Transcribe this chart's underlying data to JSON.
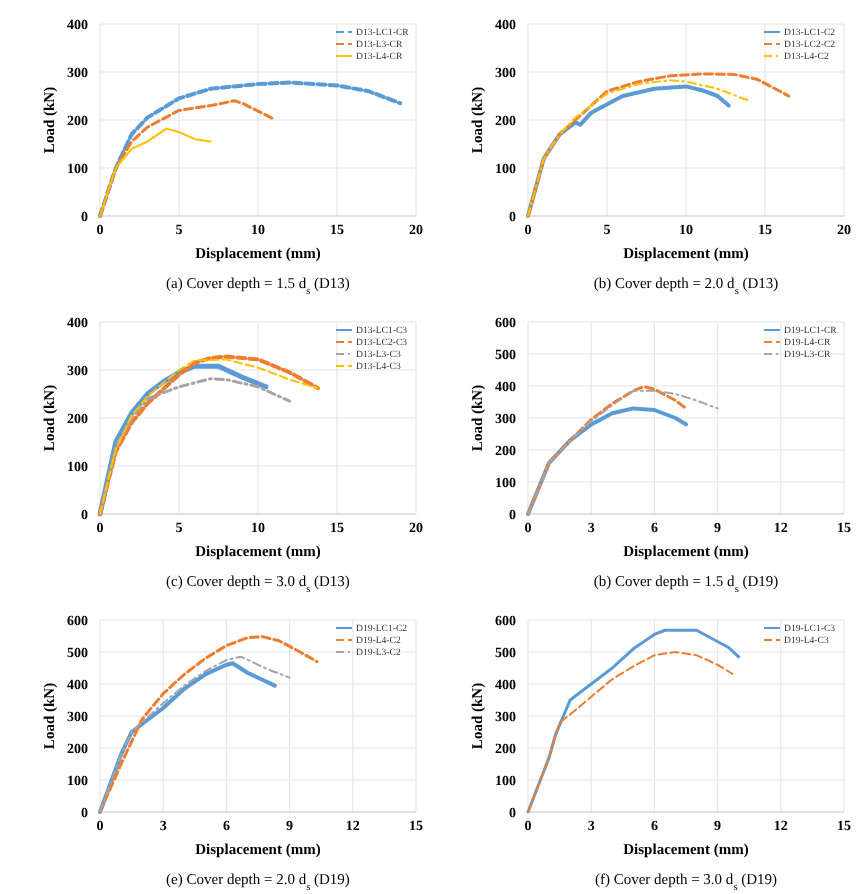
{
  "chart_data": [
    {
      "type": "line",
      "title": "(a) Cover depth = 1.5 d$_{s}$ (D13)",
      "xlabel": "Displacement (mm)",
      "ylabel": "Load (kN)",
      "xlim": [
        0,
        20
      ],
      "xticks": [
        0,
        5,
        10,
        15,
        20
      ],
      "ylim": [
        0,
        400
      ],
      "yticks": [
        0,
        100,
        200,
        300,
        400
      ],
      "grid": true,
      "legend": "top right",
      "marker": "none",
      "series": [
        {
          "name": "D13-LC1-CR",
          "color": "#5b9bd5",
          "line_style": "dashed",
          "x": [
            0,
            1,
            2,
            3,
            5,
            7,
            10,
            12,
            15,
            17,
            19
          ],
          "values": [
            0,
            100,
            170,
            205,
            245,
            265,
            275,
            278,
            272,
            260,
            235
          ]
        },
        {
          "name": "D13-L3-CR",
          "color": "#ed7d31",
          "line_style": "dashed",
          "x": [
            0,
            1,
            2,
            3,
            5,
            7,
            8.5,
            9,
            11
          ],
          "values": [
            0,
            100,
            155,
            185,
            220,
            230,
            240,
            235,
            202
          ]
        },
        {
          "name": "D13-L4-CR",
          "color": "#ffc000",
          "line_style": "solid",
          "x": [
            0,
            1,
            2,
            3,
            4.2,
            5,
            6,
            7
          ],
          "values": [
            0,
            100,
            140,
            155,
            182,
            175,
            160,
            155
          ]
        }
      ]
    },
    {
      "type": "line",
      "title": "(b) Cover depth = 2.0 d$_{s}$ (D13)",
      "xlabel": "Displacement (mm)",
      "ylabel": "Load (kN)",
      "xlim": [
        0,
        20
      ],
      "xticks": [
        0,
        5,
        10,
        15,
        20
      ],
      "ylim": [
        0,
        400
      ],
      "yticks": [
        0,
        100,
        200,
        300,
        400
      ],
      "grid": true,
      "legend": "top right",
      "marker": "none",
      "series": [
        {
          "name": "D13-LC1-C2",
          "color": "#5b9bd5",
          "line_style": "solid",
          "x": [
            0,
            1,
            2,
            3,
            3.3,
            4,
            6,
            8,
            10,
            11,
            12,
            12.7
          ],
          "values": [
            0,
            120,
            170,
            195,
            190,
            215,
            250,
            265,
            270,
            262,
            250,
            230
          ]
        },
        {
          "name": "D13-LC2-C2",
          "color": "#ed7d31",
          "line_style": "dashed",
          "x": [
            0,
            1,
            2,
            3,
            5,
            7,
            9,
            11,
            13,
            14.5,
            16.5
          ],
          "values": [
            0,
            120,
            170,
            200,
            260,
            280,
            292,
            296,
            295,
            285,
            250
          ]
        },
        {
          "name": "D13-L4-C2",
          "color": "#ffc000",
          "line_style": "dashdot",
          "x": [
            0,
            1,
            2,
            3,
            5,
            7,
            9,
            10,
            12,
            14
          ],
          "values": [
            0,
            120,
            170,
            205,
            255,
            275,
            283,
            280,
            265,
            240
          ]
        }
      ]
    },
    {
      "type": "line",
      "title": "(c) Cover depth = 3.0 d$_{s}$ (D13)",
      "xlabel": "Displacement (mm)",
      "ylabel": "Load (kN)",
      "xlim": [
        0,
        20
      ],
      "xticks": [
        0,
        5,
        10,
        15,
        20
      ],
      "ylim": [
        0,
        400
      ],
      "yticks": [
        0,
        100,
        200,
        300,
        400
      ],
      "grid": true,
      "legend": "top right",
      "marker": "none",
      "series": [
        {
          "name": "D13-LC1-C3",
          "color": "#5b9bd5",
          "line_style": "solid",
          "x": [
            0,
            1,
            2,
            3,
            4,
            5,
            6,
            7.5,
            9,
            10.5
          ],
          "values": [
            0,
            150,
            210,
            250,
            275,
            295,
            308,
            308,
            285,
            265
          ]
        },
        {
          "name": "D13-LC2-C3",
          "color": "#ed7d31",
          "line_style": "dashed",
          "x": [
            0,
            1,
            2,
            3,
            5,
            6,
            7,
            8,
            10,
            12,
            13.8
          ],
          "values": [
            0,
            130,
            190,
            230,
            290,
            315,
            325,
            328,
            322,
            295,
            262
          ]
        },
        {
          "name": "D13-L3-C3",
          "color": "#a5a5a5",
          "line_style": "dashdot",
          "x": [
            0,
            1,
            2,
            3,
            5,
            7,
            8,
            10,
            12
          ],
          "values": [
            0,
            140,
            200,
            240,
            265,
            282,
            280,
            265,
            235
          ]
        },
        {
          "name": "D13-L4-C3",
          "color": "#ffc000",
          "line_style": "dashed",
          "x": [
            0,
            1,
            2,
            3,
            5,
            6,
            8,
            10,
            12,
            13.8
          ],
          "values": [
            0,
            135,
            205,
            245,
            300,
            320,
            322,
            305,
            280,
            262
          ]
        }
      ]
    },
    {
      "type": "line",
      "title": "(b) Cover depth = 1.5 d$_{s}$ (D19)",
      "xlabel": "Displacement (mm)",
      "ylabel": "Load (kN)",
      "xlim": [
        0,
        15
      ],
      "xticks": [
        0,
        3,
        6,
        9,
        12,
        15
      ],
      "ylim": [
        0,
        600
      ],
      "yticks": [
        0,
        100,
        200,
        300,
        400,
        500,
        600
      ],
      "grid": true,
      "legend": "top right",
      "marker": "none",
      "series": [
        {
          "name": "D19-LC1-CR",
          "color": "#5b9bd5",
          "line_style": "solid",
          "x": [
            0,
            1,
            2,
            3,
            4,
            5,
            6,
            7,
            7.5
          ],
          "values": [
            0,
            160,
            230,
            280,
            315,
            330,
            325,
            300,
            280
          ]
        },
        {
          "name": "D19-L4-CR",
          "color": "#ed7d31",
          "line_style": "dashed",
          "x": [
            0,
            1,
            2,
            3,
            4,
            5,
            5.5,
            6,
            7,
            7.5
          ],
          "values": [
            0,
            160,
            230,
            295,
            345,
            385,
            398,
            390,
            355,
            330
          ]
        },
        {
          "name": "D19-L3-CR",
          "color": "#a5a5a5",
          "line_style": "dashdot",
          "x": [
            0,
            1,
            2,
            3,
            4,
            5,
            6,
            7,
            8,
            9
          ],
          "values": [
            0,
            160,
            230,
            290,
            340,
            385,
            385,
            375,
            355,
            330
          ]
        }
      ]
    },
    {
      "type": "line",
      "title": "(e) Cover depth = 2.0 d$_{s}$ (D19)",
      "xlabel": "Displacement (mm)",
      "ylabel": "Load (kN)",
      "xlim": [
        0,
        15
      ],
      "xticks": [
        0,
        3,
        6,
        9,
        12,
        15
      ],
      "ylim": [
        0,
        600
      ],
      "yticks": [
        0,
        100,
        200,
        300,
        400,
        500,
        600
      ],
      "grid": true,
      "legend": "top right",
      "marker": "none",
      "series": [
        {
          "name": "D19-LC1-C2",
          "color": "#5b9bd5",
          "line_style": "solid",
          "x": [
            0,
            1,
            1.5,
            2,
            3,
            4,
            5,
            6,
            6.3,
            7,
            8.3
          ],
          "values": [
            0,
            180,
            250,
            275,
            325,
            385,
            430,
            460,
            465,
            435,
            395
          ]
        },
        {
          "name": "D19-L4-C2",
          "color": "#ed7d31",
          "line_style": "dashed",
          "x": [
            0,
            1,
            2,
            3,
            4,
            5,
            6,
            7,
            7.7,
            8.5,
            9.5,
            10.3
          ],
          "values": [
            0,
            150,
            290,
            370,
            430,
            480,
            520,
            545,
            548,
            535,
            500,
            470
          ]
        },
        {
          "name": "D19-L3-C2",
          "color": "#a5a5a5",
          "line_style": "dashdot",
          "x": [
            0,
            1,
            1.5,
            2,
            3,
            4,
            5,
            6,
            6.7,
            8,
            9
          ],
          "values": [
            0,
            180,
            250,
            280,
            340,
            395,
            440,
            475,
            485,
            445,
            420
          ]
        }
      ]
    },
    {
      "type": "line",
      "title": "(f) Cover depth = 3.0 d$_{s}$ (D19)",
      "xlabel": "Displacement (mm)",
      "ylabel": "Load (kN)",
      "xlim": [
        0,
        15
      ],
      "xticks": [
        0,
        3,
        6,
        9,
        12,
        15
      ],
      "ylim": [
        0,
        600
      ],
      "yticks": [
        0,
        100,
        200,
        300,
        400,
        500,
        600
      ],
      "grid": true,
      "legend": "top right",
      "marker": "none",
      "series": [
        {
          "name": "D19-LC1-C3",
          "color": "#5b9bd5",
          "line_style": "solid",
          "x": [
            0,
            1,
            1.3,
            2,
            3,
            4,
            5,
            6,
            6.5,
            8,
            9.5,
            10
          ],
          "values": [
            0,
            170,
            240,
            350,
            400,
            450,
            510,
            555,
            568,
            568,
            515,
            485
          ]
        },
        {
          "name": "D19-L4-C3",
          "color": "#ed7d31",
          "line_style": "dashed",
          "x": [
            0,
            1,
            1.5,
            2,
            3,
            4,
            5,
            6,
            7,
            8,
            9,
            9.7
          ],
          "values": [
            0,
            170,
            280,
            305,
            360,
            415,
            455,
            490,
            500,
            490,
            460,
            432
          ]
        }
      ]
    }
  ]
}
